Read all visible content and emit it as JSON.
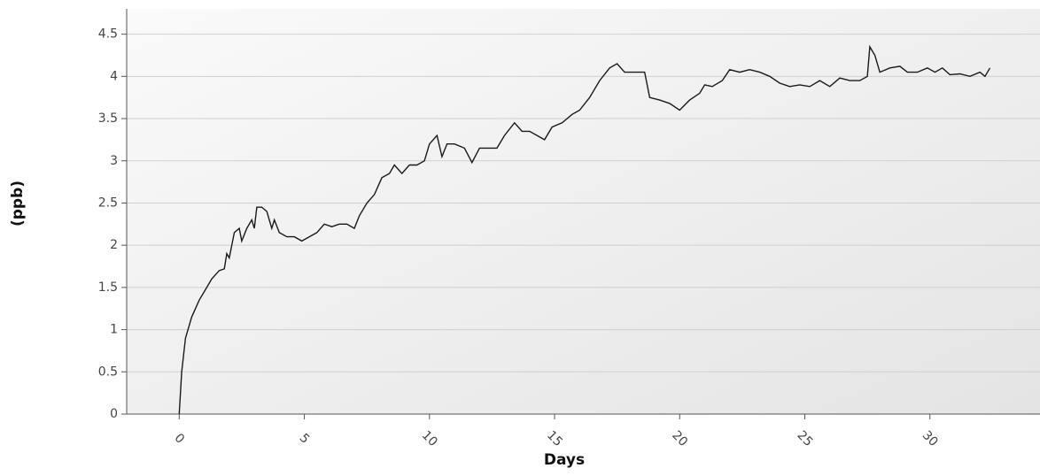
{
  "chart_data": {
    "type": "line",
    "x_label": "Days",
    "y_label": "(ppb)",
    "x": [
      0,
      0.1,
      0.25,
      0.5,
      0.8,
      1.0,
      1.3,
      1.6,
      1.8,
      1.9,
      2.0,
      2.2,
      2.4,
      2.5,
      2.7,
      2.9,
      3.0,
      3.1,
      3.3,
      3.5,
      3.7,
      3.8,
      4.0,
      4.3,
      4.6,
      4.9,
      5.2,
      5.5,
      5.8,
      6.1,
      6.4,
      6.7,
      7.0,
      7.2,
      7.5,
      7.8,
      8.1,
      8.4,
      8.6,
      8.9,
      9.2,
      9.5,
      9.8,
      10.0,
      10.3,
      10.5,
      10.7,
      11.0,
      11.4,
      11.7,
      12.0,
      12.3,
      12.7,
      13.0,
      13.4,
      13.7,
      14.0,
      14.3,
      14.6,
      14.9,
      15.3,
      15.7,
      16.0,
      16.4,
      16.8,
      17.2,
      17.5,
      17.8,
      18.2,
      18.6,
      18.8,
      19.2,
      19.6,
      20.0,
      20.4,
      20.8,
      21.0,
      21.3,
      21.7,
      22.0,
      22.4,
      22.8,
      23.2,
      23.6,
      24.0,
      24.4,
      24.8,
      25.2,
      25.6,
      26.0,
      26.4,
      26.8,
      27.2,
      27.5,
      27.6,
      27.8,
      28.0,
      28.4,
      28.8,
      29.1,
      29.5,
      29.9,
      30.2,
      30.5,
      30.8,
      31.2,
      31.6,
      32.0,
      32.2,
      32.4
    ],
    "series": [
      {
        "color": "#1a1a1a",
        "values": [
          0,
          0.5,
          0.9,
          1.15,
          1.35,
          1.45,
          1.6,
          1.7,
          1.72,
          1.9,
          1.85,
          2.15,
          2.2,
          2.05,
          2.2,
          2.3,
          2.2,
          2.45,
          2.45,
          2.4,
          2.2,
          2.3,
          2.15,
          2.1,
          2.1,
          2.05,
          2.1,
          2.15,
          2.25,
          2.22,
          2.25,
          2.25,
          2.2,
          2.35,
          2.5,
          2.6,
          2.8,
          2.85,
          2.95,
          2.85,
          2.95,
          2.95,
          3.0,
          3.2,
          3.3,
          3.05,
          3.2,
          3.2,
          3.15,
          2.98,
          3.15,
          3.15,
          3.15,
          3.3,
          3.45,
          3.35,
          3.35,
          3.3,
          3.25,
          3.4,
          3.45,
          3.55,
          3.6,
          3.75,
          3.95,
          4.1,
          4.15,
          4.05,
          4.05,
          4.05,
          3.75,
          3.72,
          3.68,
          3.6,
          3.72,
          3.8,
          3.9,
          3.88,
          3.95,
          4.08,
          4.05,
          4.08,
          4.05,
          4.0,
          3.92,
          3.88,
          3.9,
          3.88,
          3.95,
          3.88,
          3.98,
          3.95,
          3.95,
          4.0,
          4.35,
          4.25,
          4.05,
          4.1,
          4.12,
          4.05,
          4.05,
          4.1,
          4.05,
          4.1,
          4.02,
          4.03,
          4.0,
          4.05,
          4.0,
          4.1
        ]
      }
    ],
    "xlim": [
      -2.1,
      34.4
    ],
    "xticks": [
      0,
      5,
      10,
      15,
      20,
      25,
      30
    ],
    "ylim": [
      0,
      4.8
    ],
    "yticks": [
      0,
      0.5,
      1,
      1.5,
      2,
      2.5,
      3,
      3.5,
      4,
      4.5
    ],
    "grid": true
  }
}
